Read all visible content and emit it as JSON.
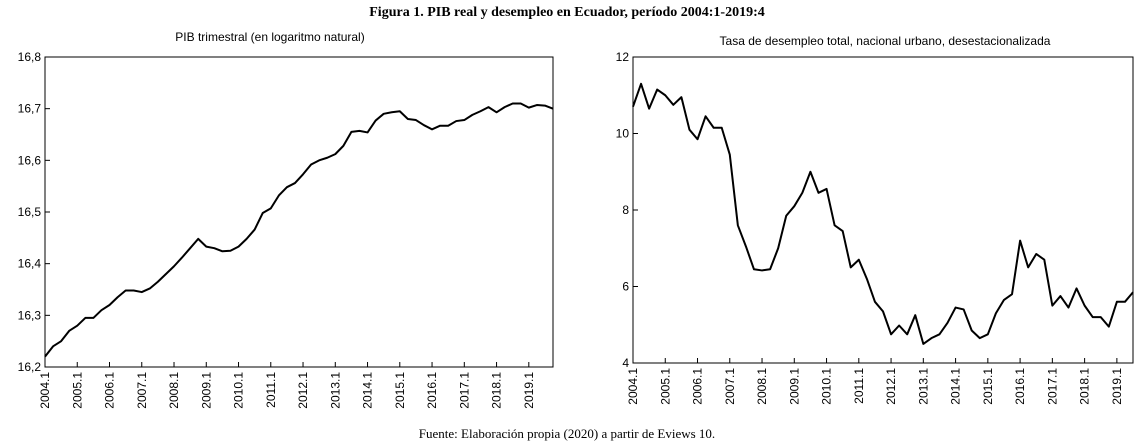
{
  "title": "Figura 1. PIB real y desempleo en Ecuador, período 2004:1-2019:4",
  "note": "Fuente: Elaboración propia (2020) a partir de Eviews 10.",
  "chart_data": [
    {
      "type": "line",
      "title": "PIB trimestral (en logaritmo natural)",
      "color": "#000000",
      "categories": [
        "2004.1",
        null,
        null,
        null,
        "2005.1",
        null,
        null,
        null,
        "2006.1",
        null,
        null,
        null,
        "2007.1",
        null,
        null,
        null,
        "2008.1",
        null,
        null,
        null,
        "2009.1",
        null,
        null,
        null,
        "2010.1",
        null,
        null,
        null,
        "2011.1",
        null,
        null,
        null,
        "2012.1",
        null,
        null,
        null,
        "2013.1",
        null,
        null,
        null,
        "2014.1",
        null,
        null,
        null,
        "2015.1",
        null,
        null,
        null,
        "2016.1",
        null,
        null,
        null,
        "2017.1",
        null,
        null,
        null,
        "2018.1",
        null,
        null,
        null,
        "2019.1",
        null,
        null,
        null
      ],
      "values": [
        16.22,
        16.24,
        16.25,
        16.27,
        16.28,
        16.295,
        16.295,
        16.31,
        16.32,
        16.335,
        16.348,
        16.348,
        16.345,
        16.352,
        16.365,
        16.38,
        16.395,
        16.412,
        16.43,
        16.448,
        16.433,
        16.43,
        16.424,
        16.425,
        16.433,
        16.448,
        16.466,
        16.498,
        16.507,
        16.532,
        16.548,
        16.556,
        16.573,
        16.592,
        16.6,
        16.605,
        16.612,
        16.628,
        16.655,
        16.657,
        16.654,
        16.677,
        16.69,
        16.693,
        16.695,
        16.68,
        16.678,
        16.668,
        16.66,
        16.667,
        16.667,
        16.676,
        16.678,
        16.688,
        16.695,
        16.703,
        16.693,
        16.703,
        16.71,
        16.71,
        16.702,
        16.707,
        16.706,
        16.7
      ],
      "ylim": [
        16.2,
        16.8
      ],
      "yticks": [
        {
          "value": 16.2,
          "label": "16,2"
        },
        {
          "value": 16.3,
          "label": "16,3"
        },
        {
          "value": 16.4,
          "label": "16,4"
        },
        {
          "value": 16.5,
          "label": "16,5"
        },
        {
          "value": 16.6,
          "label": "16,6"
        },
        {
          "value": 16.7,
          "label": "16,7"
        },
        {
          "value": 16.8,
          "label": "16,8"
        }
      ]
    },
    {
      "type": "line",
      "title": "Tasa de desempleo total, nacional urbano, desestacionalizada",
      "color": "#000000",
      "categories": [
        "2004.1",
        null,
        null,
        null,
        "2005.1",
        null,
        null,
        null,
        "2006.1",
        null,
        null,
        null,
        "2007.1",
        null,
        null,
        null,
        "2008.1",
        null,
        null,
        null,
        "2009.1",
        null,
        null,
        null,
        "2010.1",
        null,
        null,
        null,
        "2011.1",
        null,
        null,
        null,
        "2012.1",
        null,
        null,
        null,
        "2013.1",
        null,
        null,
        null,
        "2014.1",
        null,
        null,
        null,
        "2015.1",
        null,
        null,
        null,
        "2016.1",
        null,
        null,
        null,
        "2017.1",
        null,
        null,
        null,
        "2018.1",
        null,
        null,
        null,
        "2019.1",
        null,
        null
      ],
      "values": [
        10.7,
        11.3,
        10.65,
        11.15,
        11.0,
        10.75,
        10.95,
        10.1,
        9.85,
        10.45,
        10.15,
        10.15,
        9.45,
        7.6,
        7.05,
        6.45,
        6.42,
        6.45,
        7.0,
        7.85,
        8.1,
        8.45,
        9.0,
        8.45,
        8.55,
        7.6,
        7.45,
        6.5,
        6.7,
        6.2,
        5.6,
        5.35,
        4.75,
        4.98,
        4.75,
        5.25,
        4.5,
        4.65,
        4.75,
        5.05,
        5.45,
        5.4,
        4.85,
        4.65,
        4.75,
        5.3,
        5.65,
        5.8,
        7.2,
        6.5,
        6.85,
        6.7,
        5.5,
        5.75,
        5.45,
        5.95,
        5.5,
        5.2,
        5.2,
        4.95,
        5.6,
        5.6,
        5.85
      ],
      "ylim": [
        4,
        12
      ],
      "yticks": [
        4,
        6,
        8,
        10,
        12
      ]
    }
  ]
}
